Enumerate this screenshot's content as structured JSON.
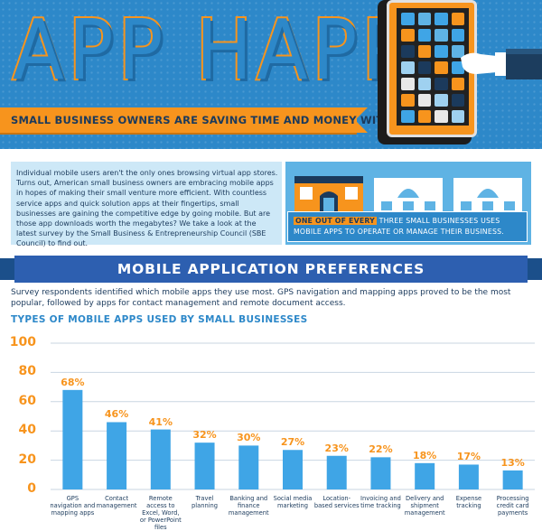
{
  "header": {
    "title": "APP HAPPY",
    "subtitle": "SMALL BUSINESS OWNERS ARE SAVING TIME AND MONEY WITH APPS",
    "colors": {
      "blue": "#2d88c9",
      "orange": "#f7941d",
      "navy": "#1b3a5c"
    },
    "icons": [
      "tablet-icon",
      "hand-icon"
    ]
  },
  "intro": {
    "paragraph": "Individual mobile users aren't the only ones browsing virtual app stores. Turns out, American small business owners are embracing mobile apps in hopes of making their small venture more efficient. With countless service apps and quick solution apps at their fingertips, small businesses are gaining the competitive edge by going mobile. But are those app downloads worth the megabytes? We take a look at the latest survey by the Small Business & Entrepreneurship Council (SBE Council) to find out.",
    "fact_highlight": "ONE OUT OF EVERY",
    "fact_rest": "THREE SMALL BUSINESSES USES MOBILE APPS TO OPERATE OR MANAGE THEIR BUSINESS.",
    "icons": [
      "storefront-icon",
      "house-icon",
      "house-icon"
    ]
  },
  "section": {
    "banner": "MOBILE APPLICATION PREFERENCES",
    "description": "Survey respondents identified which mobile apps they use most. GPS navigation and mapping apps proved to be the most popular, followed by apps for contact management and remote document access."
  },
  "chart_data": {
    "type": "bar",
    "title": "TYPES OF MOBILE APPS USED BY SMALL BUSINESSES",
    "xlabel": "",
    "ylabel": "",
    "ylim": [
      0,
      100
    ],
    "yticks": [
      "100",
      "80",
      "60",
      "40",
      "20",
      "0"
    ],
    "grid": true,
    "categories": [
      "GPS navigation and mapping apps",
      "Contact management",
      "Remote access to Excel, Word, or PowerPoint files",
      "Travel planning",
      "Banking and finance management",
      "Social media marketing",
      "Location-based services",
      "Invoicing and time tracking",
      "Delivery and shipment management",
      "Expense tracking",
      "Processing credit card payments"
    ],
    "values": [
      68,
      46,
      41,
      32,
      30,
      27,
      23,
      22,
      18,
      17,
      13
    ],
    "value_labels": [
      "68%",
      "46%",
      "41%",
      "32%",
      "30%",
      "27%",
      "23%",
      "22%",
      "18%",
      "17%",
      "13%"
    ],
    "bar_color": "#3fa5e6",
    "label_color": "#f7941d"
  }
}
